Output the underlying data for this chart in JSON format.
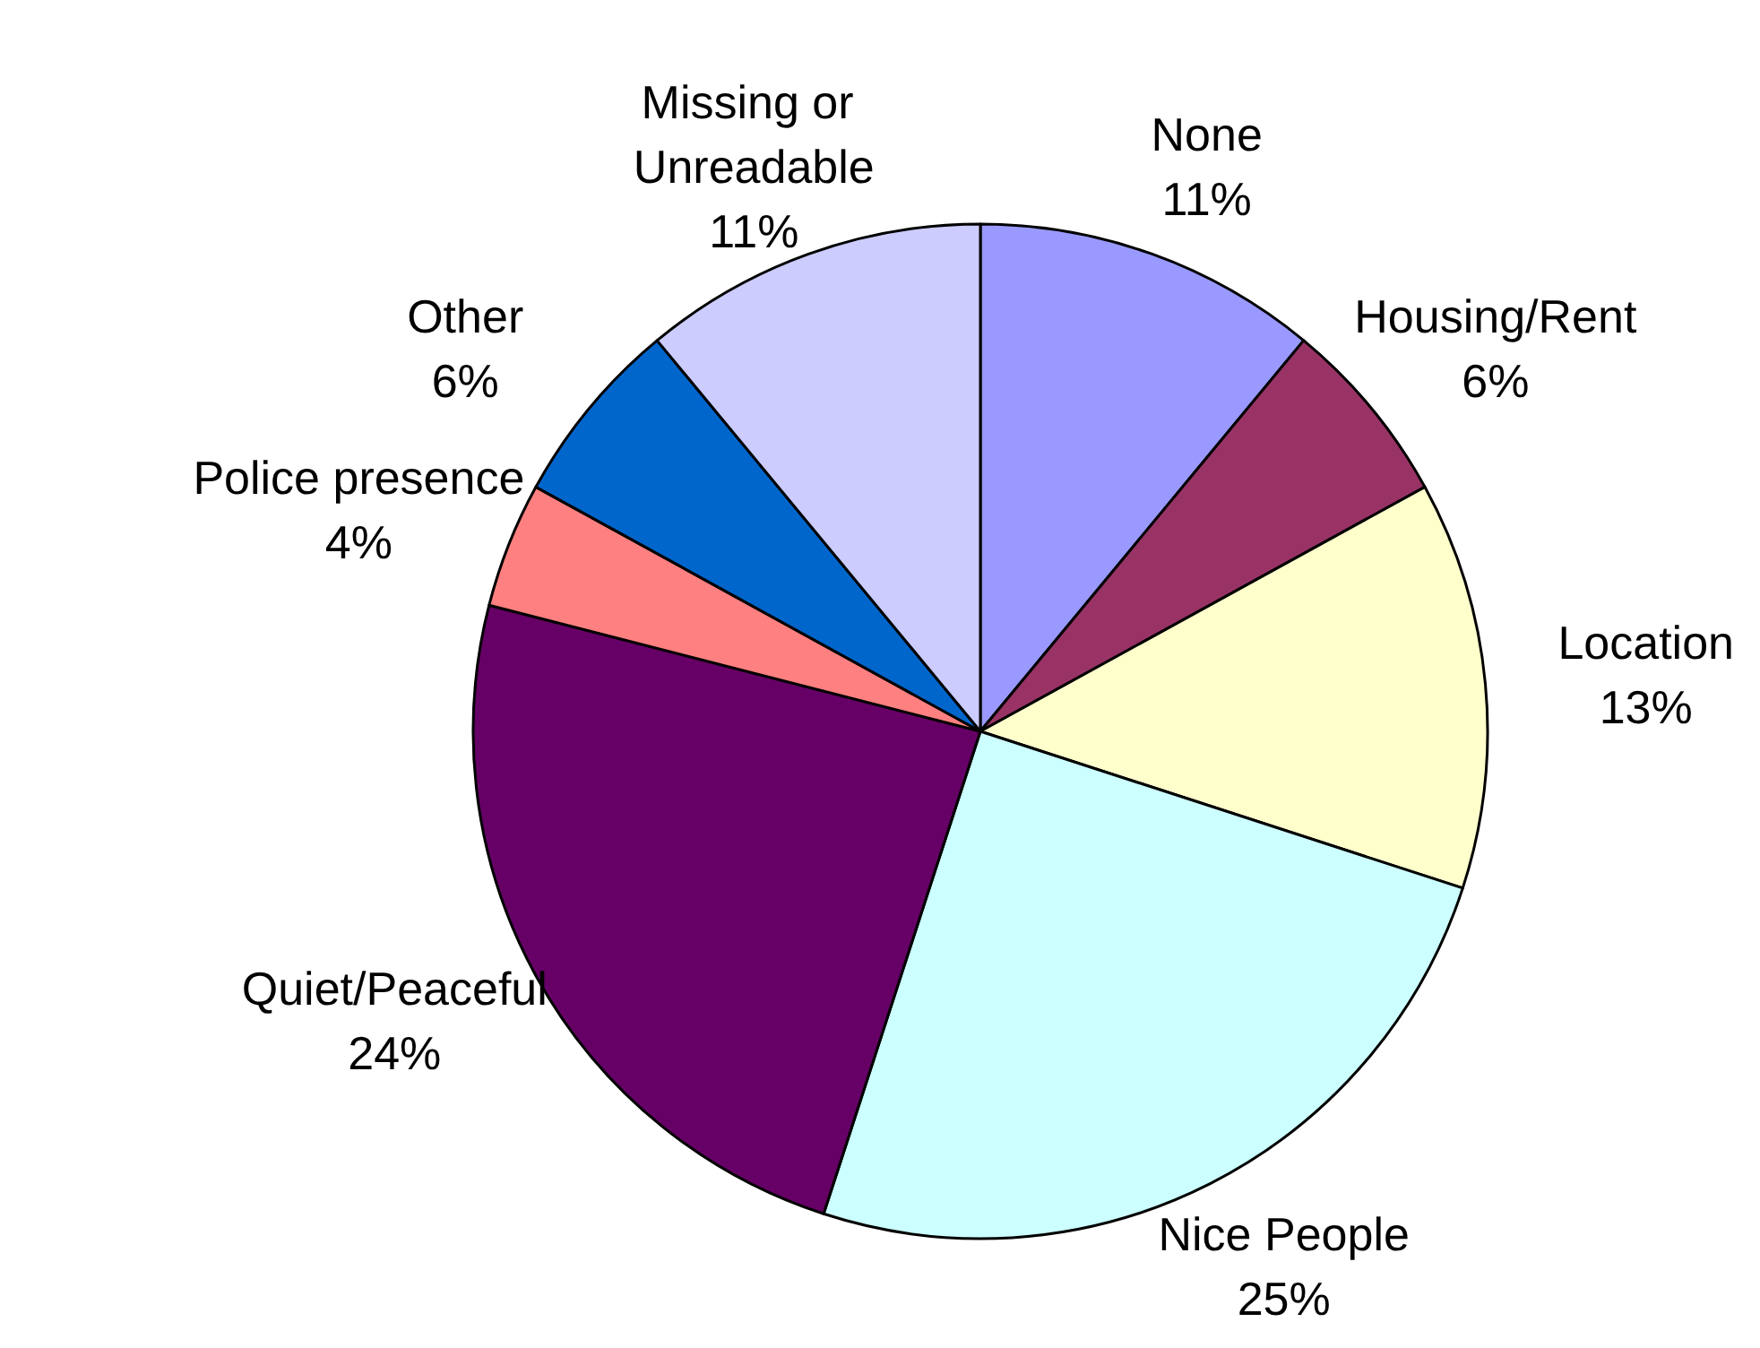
{
  "chart_data": {
    "type": "pie",
    "categories": [
      "None",
      "Housing/Rent",
      "Location",
      "Nice People",
      "Quiet/Peaceful",
      "Police presence",
      "Other",
      "Missing or Unreadable"
    ],
    "values": [
      11,
      6,
      13,
      25,
      24,
      4,
      6,
      11
    ],
    "value_labels": [
      "11%",
      "6%",
      "13%",
      "25%",
      "24%",
      "4%",
      "6%",
      "11%"
    ],
    "colors": [
      "#9999ff",
      "#993366",
      "#ffffcc",
      "#ccffff",
      "#660066",
      "#ff8080",
      "#0066cc",
      "#ccccff"
    ],
    "legend": false
  }
}
